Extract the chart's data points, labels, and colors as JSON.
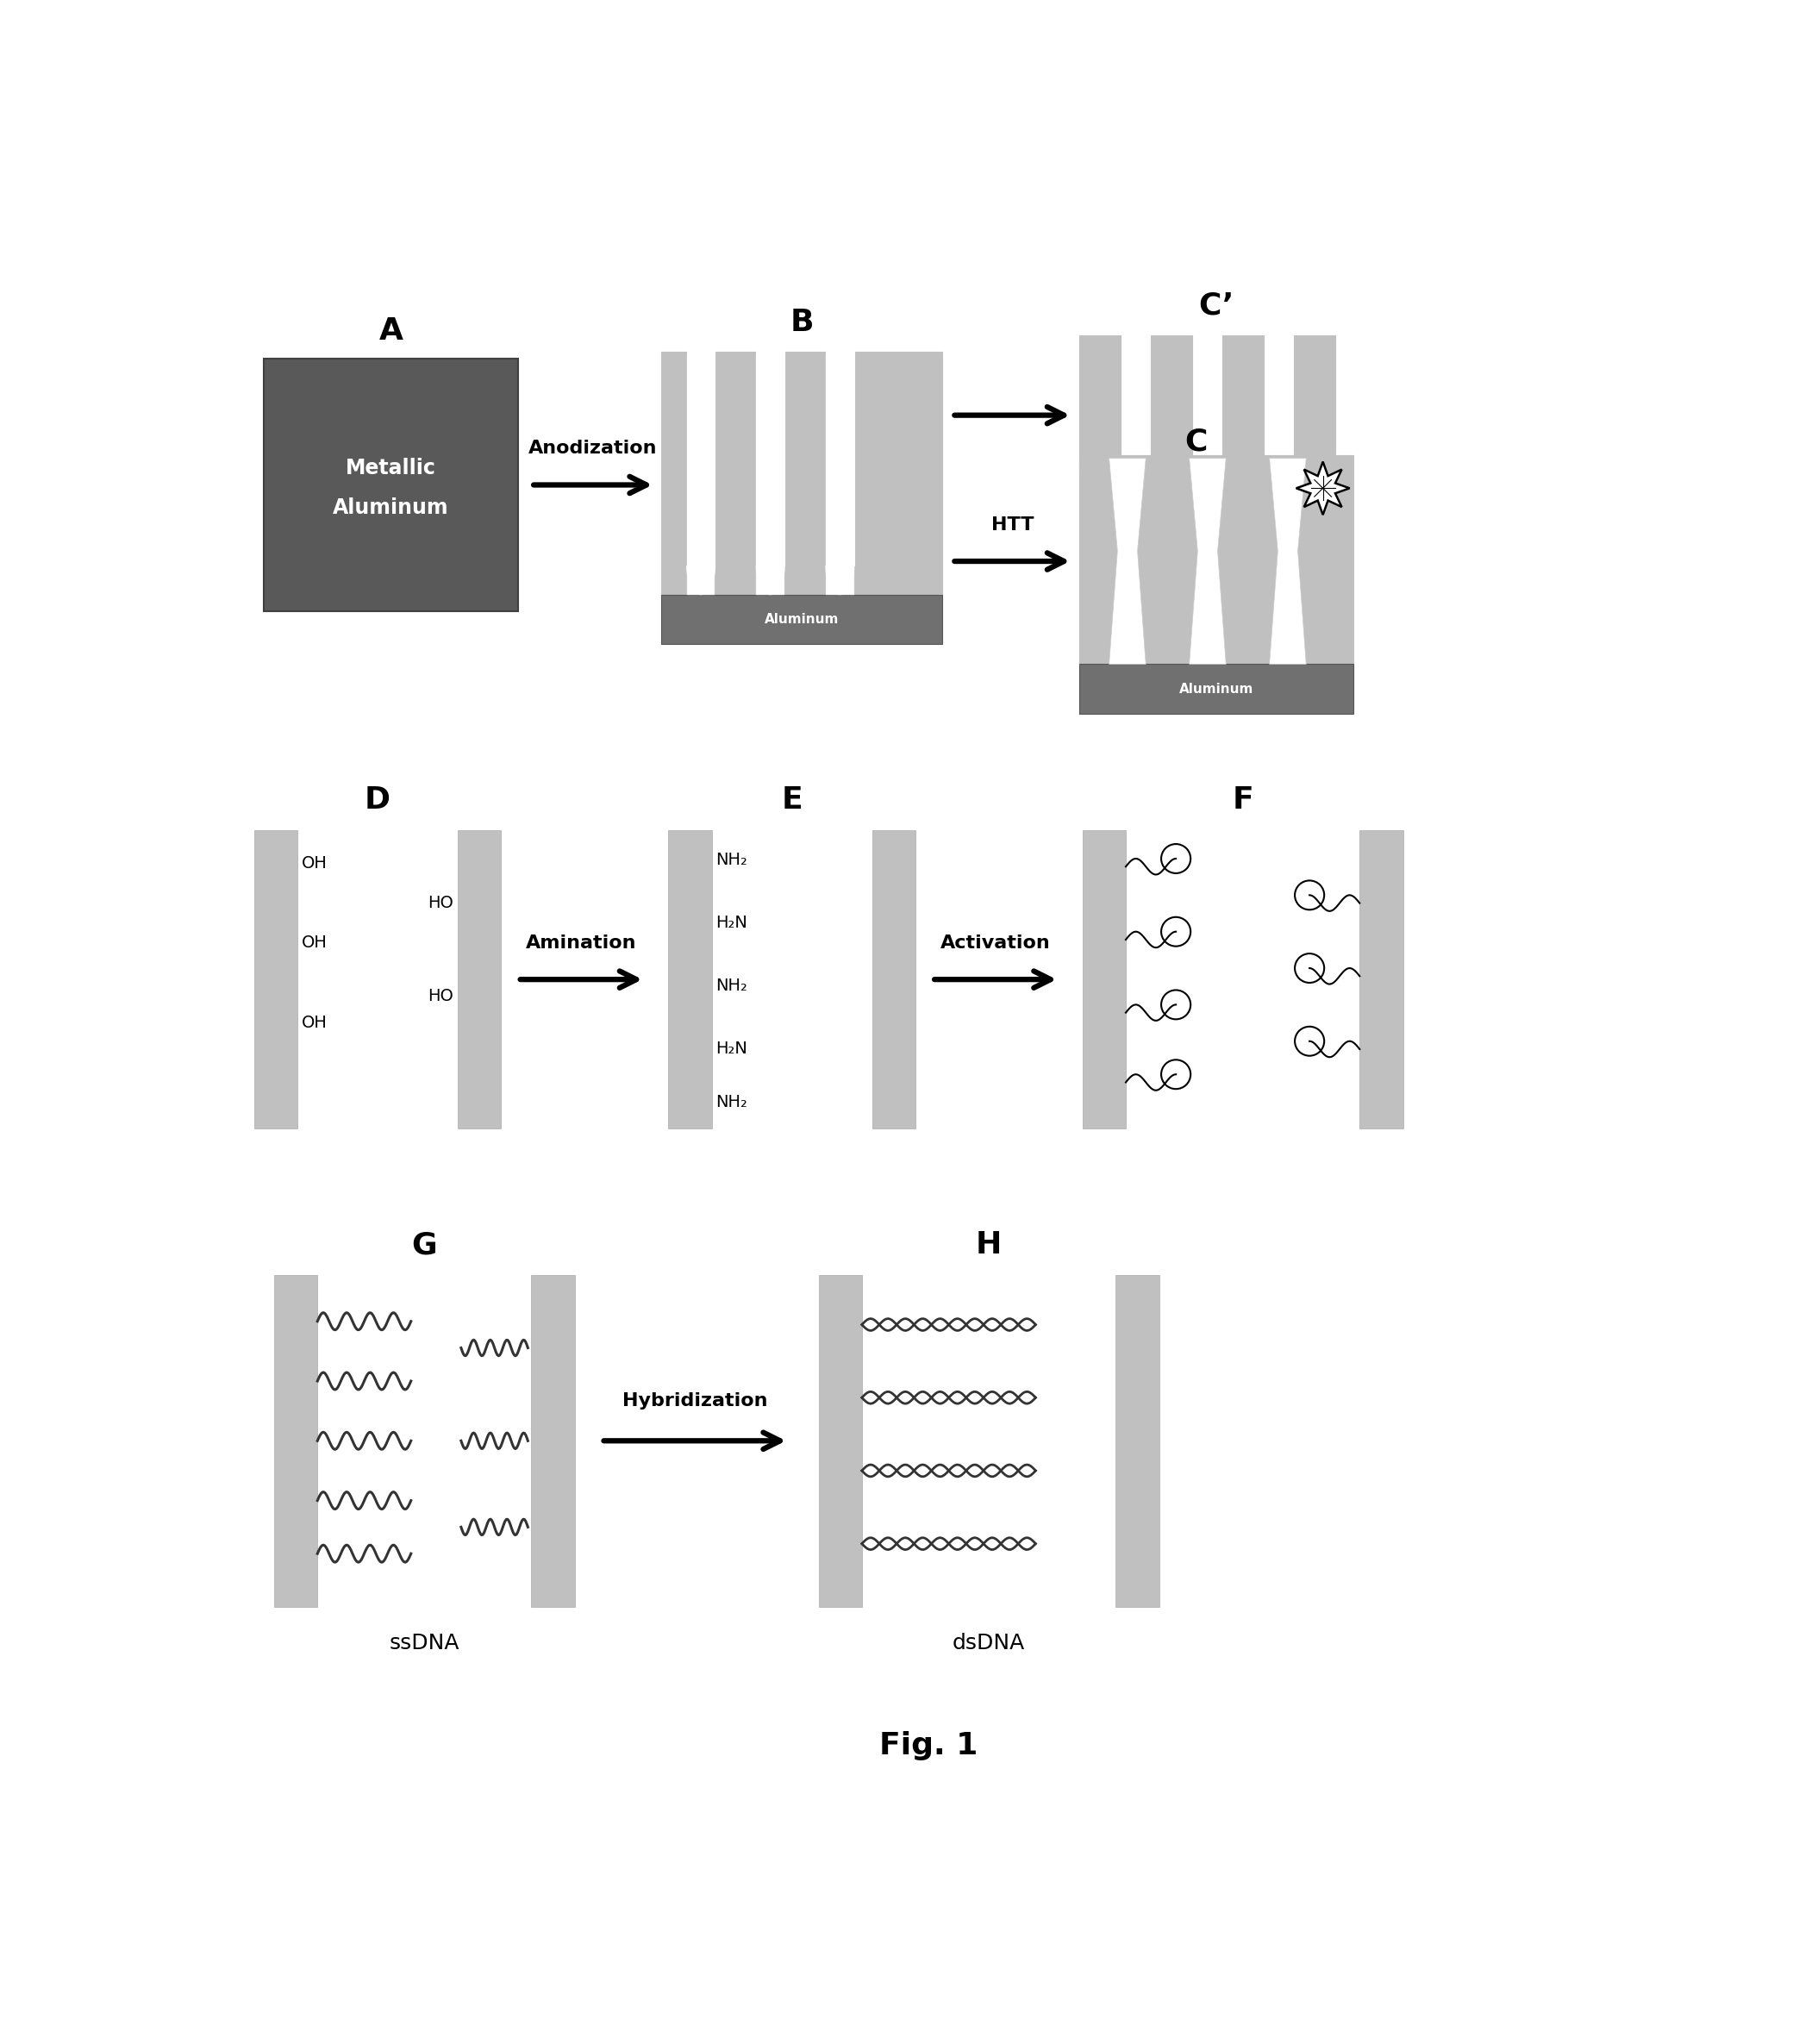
{
  "bg_color": "#ffffff",
  "dark_gray": "#595959",
  "light_gray": "#c0c0c0",
  "aluminum_color": "#707070",
  "black": "#000000",
  "white": "#ffffff",
  "fig_label": "Fig. 1",
  "metallic_text_1": "Metallic",
  "metallic_text_2": "Aluminum",
  "aluminum_label": "Aluminum",
  "ssDNA_label": "ssDNA",
  "dsDNA_label": "dsDNA",
  "label_A": "A",
  "label_B": "B",
  "label_Cp": "C’",
  "label_C": "C",
  "label_D": "D",
  "label_E": "E",
  "label_F": "F",
  "label_G": "G",
  "label_H": "H",
  "arr_anodization": "Anodization",
  "arr_HTT": "HTT",
  "arr_amination": "Amination",
  "arr_activation": "Activation",
  "arr_hybridization": "Hybridization",
  "oh_groups_left": [
    "OH",
    "OH",
    "OH"
  ],
  "oh_groups_right": [
    "HO",
    "HO"
  ],
  "nh2_groups_left": [
    "NH₂",
    "NH₂",
    "NH₂"
  ],
  "nh2_groups_right": [
    "H₂N",
    "H₂N"
  ]
}
